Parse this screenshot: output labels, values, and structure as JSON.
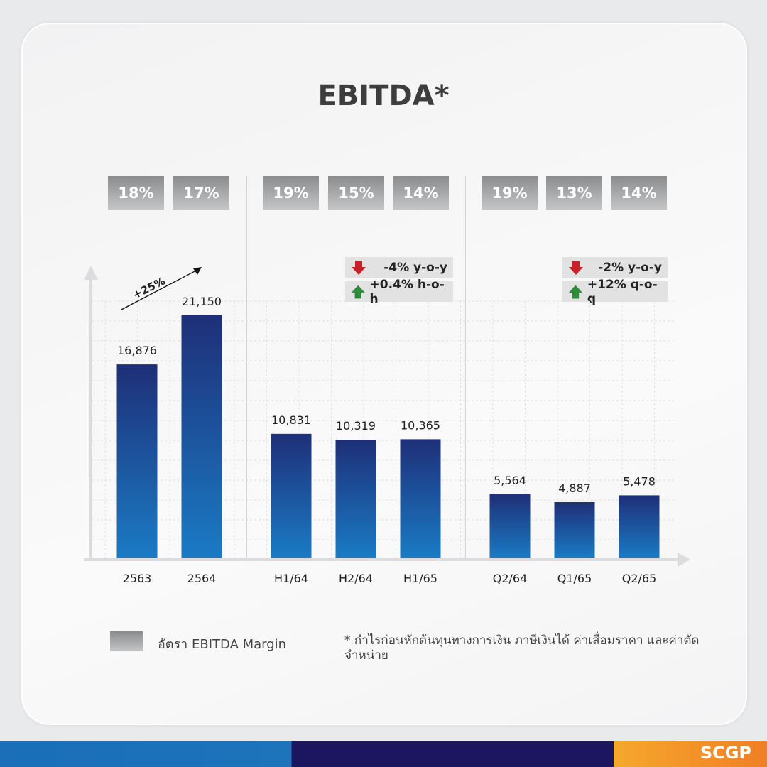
{
  "title": "EBITDA*",
  "margins": [
    "18%",
    "17%",
    "19%",
    "15%",
    "14%",
    "19%",
    "13%",
    "14%"
  ],
  "badges": {
    "half": [
      {
        "icon": "arrow-down-icon",
        "text": "-4% y-o-y"
      },
      {
        "icon": "arrow-up-icon",
        "text": "+0.4% h-o-h"
      }
    ],
    "quarter": [
      {
        "icon": "arrow-down-icon",
        "text": "-2% y-o-y"
      },
      {
        "icon": "arrow-up-icon",
        "text": "+12% q-o-q"
      }
    ]
  },
  "growth_label": "+25%",
  "legend": {
    "label": "อัตรา EBITDA Margin"
  },
  "note": "* กำไรก่อนหักต้นทุนทางการเงิน ภาษีเงินได้ ค่าเสื่อมราคา และค่าตัดจำหน่าย",
  "logo": "SCGP",
  "colors": {
    "bar_top": "#1e2f78",
    "bar_bottom": "#1a7bc4",
    "up": "#2e8b3a",
    "down": "#c8202a"
  },
  "chart_data": {
    "type": "bar",
    "categories": [
      "2563",
      "2564",
      "H1/64",
      "H2/64",
      "H1/65",
      "Q2/64",
      "Q1/65",
      "Q2/65"
    ],
    "values": [
      16876,
      21150,
      10831,
      10319,
      10365,
      5564,
      4887,
      5478
    ],
    "value_labels": [
      "16,876",
      "21,150",
      "10,831",
      "10,319",
      "10,365",
      "5,564",
      "4,887",
      "5,478"
    ],
    "grid": true
  }
}
